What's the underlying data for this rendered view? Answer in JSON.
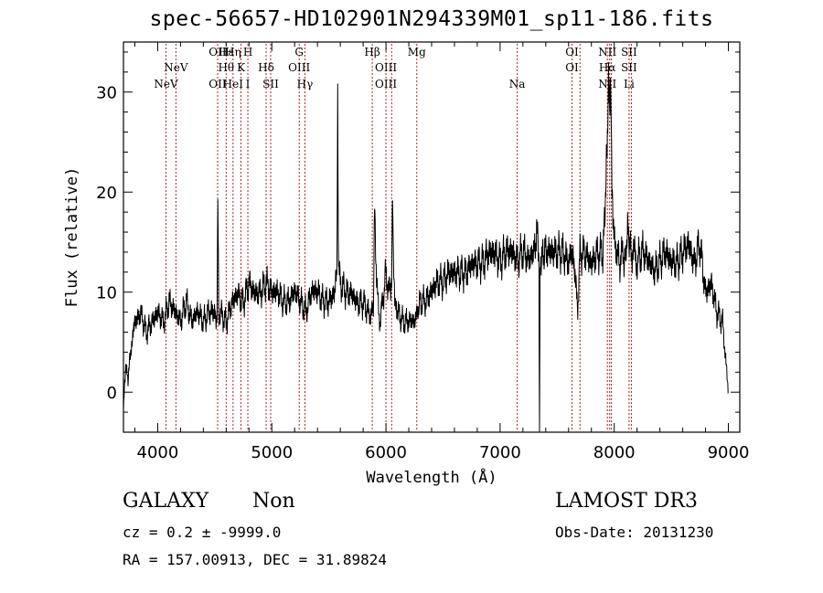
{
  "title": "spec-56657-HD102901N294339M01_sp11-186.fits",
  "info": {
    "object_type": "GALAXY",
    "object_subclass": "Non",
    "survey": "LAMOST DR3",
    "cz": "cz = 0.2 ± -9999.0",
    "obs_date": "Obs-Date: 20131230",
    "radec": "RA = 157.00913, DEC =  31.89824"
  },
  "chart_data": {
    "type": "line",
    "title": "spec-56657-HD102901N294339M01_sp11-186.fits",
    "xlabel": "Wavelength (Å)",
    "ylabel": "Flux (relative)",
    "xlim": [
      3700,
      9100
    ],
    "ylim": [
      -4,
      35
    ],
    "xticks": [
      4000,
      5000,
      6000,
      7000,
      8000,
      9000
    ],
    "yticks": [
      0,
      10,
      20,
      30
    ],
    "series": [
      {
        "name": "flux",
        "x": [
          3700,
          3720,
          3740,
          3760,
          3800,
          3850,
          3900,
          3950,
          4000,
          4050,
          4100,
          4150,
          4200,
          4250,
          4300,
          4350,
          4400,
          4450,
          4500,
          4520,
          4527,
          4535,
          4550,
          4600,
          4650,
          4700,
          4750,
          4800,
          4850,
          4900,
          4950,
          5000,
          5050,
          5100,
          5150,
          5200,
          5250,
          5300,
          5350,
          5400,
          5450,
          5500,
          5550,
          5570,
          5577,
          5585,
          5600,
          5650,
          5700,
          5750,
          5800,
          5850,
          5880,
          5890,
          5900,
          5920,
          5950,
          5980,
          6000,
          6030,
          6050,
          6058,
          6065,
          6080,
          6100,
          6150,
          6200,
          6250,
          6280,
          6300,
          6350,
          6400,
          6450,
          6500,
          6550,
          6600,
          6650,
          6700,
          6750,
          6800,
          6850,
          6900,
          6950,
          7000,
          7050,
          7100,
          7150,
          7200,
          7250,
          7300,
          7320,
          7340,
          7345,
          7350,
          7360,
          7380,
          7400,
          7450,
          7500,
          7550,
          7600,
          7630,
          7650,
          7680,
          7700,
          7750,
          7800,
          7850,
          7900,
          7920,
          7940,
          7950,
          7960,
          7970,
          7980,
          8000,
          8030,
          8050,
          8080,
          8100,
          8120,
          8140,
          8160,
          8200,
          8250,
          8300,
          8350,
          8400,
          8450,
          8500,
          8550,
          8600,
          8650,
          8700,
          8750,
          8800,
          8850,
          8900,
          8950,
          9000
        ],
        "y": [
          -2,
          3,
          1,
          4,
          7,
          8,
          6,
          7,
          8,
          7,
          9,
          8,
          7,
          9,
          7,
          8,
          7,
          8,
          8,
          7,
          20,
          8,
          8,
          7,
          9,
          10,
          9,
          11,
          10,
          10,
          11,
          10,
          10,
          9,
          9,
          10,
          9,
          8,
          10,
          10,
          9,
          9,
          10,
          12,
          29,
          12,
          11,
          10,
          10,
          9,
          9,
          8,
          8,
          7,
          19,
          10,
          7,
          10,
          12,
          10,
          11,
          21,
          13,
          9,
          8,
          7,
          7,
          7,
          8,
          9,
          9,
          10,
          11,
          11,
          12,
          12,
          12,
          12,
          13,
          13,
          13,
          14,
          14,
          13,
          14,
          14,
          13,
          14,
          13,
          14,
          16,
          14,
          -4,
          14,
          13,
          14,
          14,
          14,
          14,
          14,
          13,
          14,
          13,
          8,
          14,
          14,
          13,
          14,
          14,
          18,
          26,
          31,
          27,
          30,
          20,
          15,
          14,
          13,
          14,
          13,
          17,
          14,
          14,
          13,
          14,
          13,
          12,
          13,
          14,
          13,
          13,
          14,
          15,
          13,
          15,
          10,
          11,
          8,
          7,
          0
        ]
      }
    ],
    "lines": [
      {
        "wave": 4073,
        "labels": [
          "NeV"
        ],
        "level": 3
      },
      {
        "wave": 4160,
        "labels": [
          "NeV"
        ],
        "level": 2
      },
      {
        "wave": 4525,
        "labels": [
          "OII",
          "OII"
        ],
        "levels": [
          1,
          3
        ]
      },
      {
        "wave": 4600,
        "labels": [
          "Hε",
          "Hθ"
        ],
        "levels": [
          1,
          2
        ]
      },
      {
        "wave": 4660,
        "labels": [
          "Hη",
          "HeI"
        ],
        "levels": [
          1,
          3
        ]
      },
      {
        "wave": 4730,
        "labels": [
          "K"
        ],
        "level": 2
      },
      {
        "wave": 4790,
        "labels": [
          "H",
          "I"
        ],
        "levels": [
          1,
          3
        ]
      },
      {
        "wave": 4950,
        "labels": [
          "Hδ"
        ],
        "level": 2
      },
      {
        "wave": 4990,
        "labels": [
          "SII"
        ],
        "level": 3
      },
      {
        "wave": 5240,
        "labels": [
          "G",
          "OIII"
        ],
        "levels": [
          1,
          2
        ]
      },
      {
        "wave": 5290,
        "labels": [
          "Hγ"
        ],
        "level": 3
      },
      {
        "wave": 5880,
        "labels": [
          "Hβ"
        ],
        "level": 1
      },
      {
        "wave": 6000,
        "labels": [
          "OIII",
          "OIII"
        ],
        "levels": [
          2,
          3
        ]
      },
      {
        "wave": 6050,
        "labels": [],
        "level": 0
      },
      {
        "wave": 6270,
        "labels": [
          "Mg"
        ],
        "level": 1
      },
      {
        "wave": 7150,
        "labels": [
          "Na"
        ],
        "level": 3
      },
      {
        "wave": 7630,
        "labels": [
          "OI",
          "OI"
        ],
        "levels": [
          1,
          2
        ]
      },
      {
        "wave": 7700,
        "labels": [],
        "level": 0
      },
      {
        "wave": 7940,
        "labels": [
          "NII",
          "Hα",
          "NII"
        ],
        "levels": [
          1,
          2,
          3
        ]
      },
      {
        "wave": 7960,
        "labels": [],
        "level": 0
      },
      {
        "wave": 7975,
        "labels": [],
        "level": 0
      },
      {
        "wave": 8130,
        "labels": [
          "SII",
          "SII",
          "Li"
        ],
        "levels": [
          1,
          2,
          3
        ]
      },
      {
        "wave": 8150,
        "labels": [],
        "level": 0
      }
    ]
  }
}
